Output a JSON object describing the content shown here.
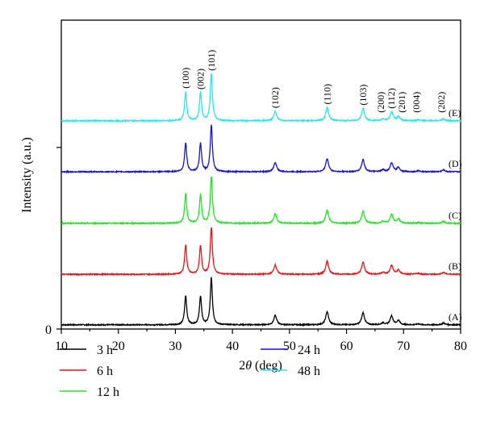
{
  "chart_data": {
    "type": "line",
    "title": "",
    "xlabel_prefix": "2",
    "xlabel_theta": "θ",
    "xlabel_suffix": " (deg)",
    "ylabel": "Intensity (a.u.)",
    "xlim": [
      10,
      80
    ],
    "ylim": [
      0,
      660
    ],
    "x_ticks": [
      10,
      20,
      30,
      40,
      50,
      60,
      70,
      80
    ],
    "y_tick_labels": [
      {
        "value": 0,
        "label": "0"
      },
      {
        "value": 388,
        "label": ""
      }
    ],
    "grid": false,
    "peaks": [
      {
        "hkl": "(100)",
        "x": 31.8,
        "rel": 62
      },
      {
        "hkl": "(002)",
        "x": 34.4,
        "rel": 60
      },
      {
        "hkl": "(101)",
        "x": 36.3,
        "rel": 100
      },
      {
        "hkl": "(102)",
        "x": 47.5,
        "rel": 20
      },
      {
        "hkl": "(110)",
        "x": 56.6,
        "rel": 28
      },
      {
        "hkl": "(103)",
        "x": 62.9,
        "rel": 26
      },
      {
        "hkl": "(200)",
        "x": 66.4,
        "rel": 4
      },
      {
        "hkl": "(112)",
        "x": 67.9,
        "rel": 19
      },
      {
        "hkl": "(201)",
        "x": 69.1,
        "rel": 9
      },
      {
        "hkl": "(004)",
        "x": 72.6,
        "rel": 2
      },
      {
        "hkl": "(202)",
        "x": 77.0,
        "rel": 4
      }
    ],
    "series": [
      {
        "name": "3 h",
        "tag": "(A)",
        "color": "#000000",
        "offset": 9,
        "scale": 1.0
      },
      {
        "name": "6 h",
        "tag": "(B)",
        "color": "#e8141a",
        "offset": 117,
        "scale": 1.0
      },
      {
        "name": "12 h",
        "tag": "(C)",
        "color": "#1ee81e",
        "offset": 226,
        "scale": 1.0
      },
      {
        "name": "24 h",
        "tag": "(D)",
        "color": "#1414d2",
        "offset": 336,
        "scale": 1.0
      },
      {
        "name": "48 h",
        "tag": "(E)",
        "color": "#28e6f0",
        "offset": 445,
        "scale": 1.0
      }
    ],
    "legend_placement": "bottom"
  }
}
